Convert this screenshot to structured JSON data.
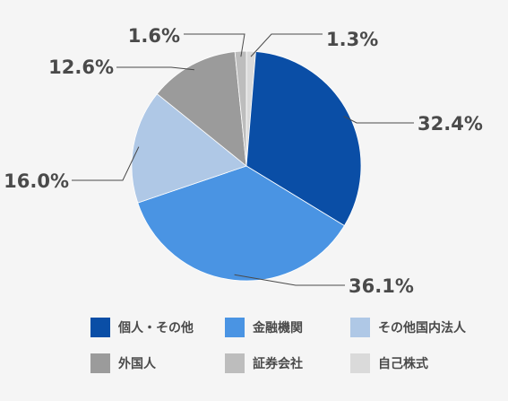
{
  "chart_data": {
    "type": "pie",
    "categories": [
      "個人・その他",
      "金融機関",
      "その他国内法人",
      "外国人",
      "証券会社",
      "自己株式"
    ],
    "values": [
      32.4,
      36.1,
      16.0,
      12.6,
      1.6,
      1.3
    ],
    "value_labels": [
      "32.4%",
      "36.1%",
      "16.0%",
      "12.6%",
      "1.6%",
      "1.3%"
    ],
    "colors": [
      "#0a4ea6",
      "#4a94e3",
      "#afc8e6",
      "#9b9b9b",
      "#bdbdbd",
      "#dadada"
    ],
    "pie_start_order": [
      5,
      0,
      1,
      2,
      3,
      4
    ],
    "legend_placement": "bottom",
    "title": ""
  }
}
